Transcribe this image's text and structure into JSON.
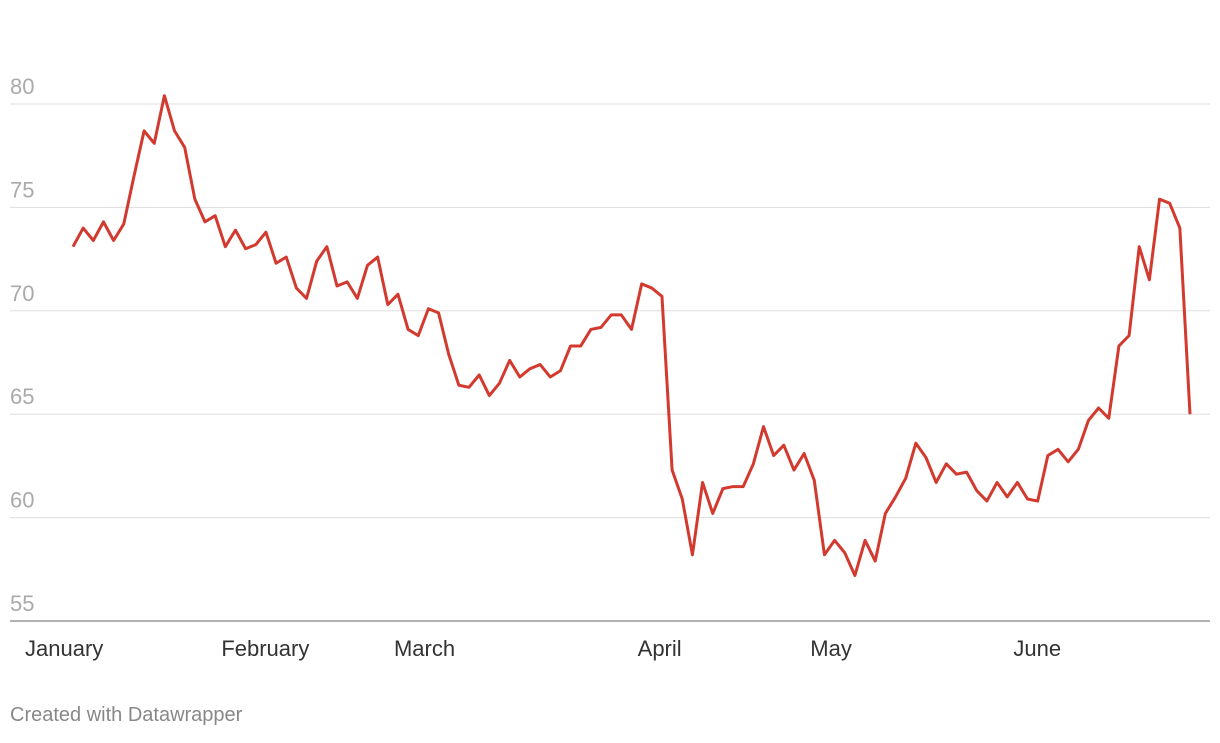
{
  "chart_data": {
    "type": "line",
    "categories": [
      "January",
      null,
      null,
      null,
      null,
      null,
      null,
      null,
      null,
      null,
      null,
      null,
      null,
      null,
      null,
      "February",
      null,
      null,
      null,
      null,
      null,
      null,
      null,
      null,
      null,
      null,
      null,
      null,
      null,
      null,
      null,
      null,
      "March",
      null,
      null,
      null,
      null,
      null,
      null,
      null,
      null,
      null,
      null,
      null,
      null,
      null,
      null,
      null,
      null,
      null,
      null,
      null,
      null,
      null,
      null,
      null,
      "April",
      null,
      null,
      null,
      null,
      null,
      null,
      null,
      null,
      null,
      null,
      null,
      null,
      null,
      null,
      null,
      null,
      "May",
      null,
      null,
      null,
      null,
      null,
      null,
      null,
      null,
      null,
      null,
      null,
      null,
      null,
      null,
      null,
      null,
      null,
      null,
      null,
      "June",
      null,
      null,
      null,
      null,
      null,
      null,
      null,
      null,
      null,
      null,
      null,
      null,
      null,
      null,
      null,
      null,
      null
    ],
    "series": [
      {
        "color": "#d33a2f",
        "values": [
          73.1,
          74.0,
          73.4,
          74.3,
          73.4,
          74.2,
          76.5,
          78.7,
          78.1,
          80.4,
          78.7,
          77.9,
          75.4,
          74.3,
          74.6,
          73.1,
          73.9,
          73.0,
          73.2,
          73.8,
          72.3,
          72.6,
          71.1,
          70.6,
          72.4,
          73.1,
          71.2,
          71.4,
          70.6,
          72.2,
          72.6,
          70.3,
          70.8,
          69.1,
          68.8,
          70.1,
          69.9,
          67.9,
          66.4,
          66.3,
          66.9,
          65.9,
          66.5,
          67.6,
          66.8,
          67.2,
          67.4,
          66.8,
          67.1,
          68.3,
          68.3,
          69.1,
          69.2,
          69.8,
          69.8,
          69.1,
          71.3,
          71.1,
          70.7,
          62.3,
          60.9,
          58.2,
          61.7,
          60.2,
          61.4,
          61.5,
          61.5,
          62.6,
          64.4,
          63.0,
          63.5,
          62.3,
          63.1,
          61.8,
          58.2,
          58.9,
          58.3,
          57.2,
          58.9,
          57.9,
          60.2,
          61.0,
          61.9,
          63.6,
          62.9,
          61.7,
          62.6,
          62.1,
          62.2,
          61.3,
          60.8,
          61.7,
          61.0,
          61.7,
          60.9,
          60.8,
          63.0,
          63.3,
          62.7,
          63.3,
          64.7,
          65.3,
          64.8,
          68.3,
          68.8,
          73.1,
          71.5,
          75.4,
          75.2,
          74.0,
          65.0
        ]
      }
    ],
    "ylim": [
      55,
      80
    ],
    "yticks": [
      55,
      60,
      65,
      70,
      75,
      80
    ],
    "grid": true,
    "footer": "Created with Datawrapper"
  }
}
